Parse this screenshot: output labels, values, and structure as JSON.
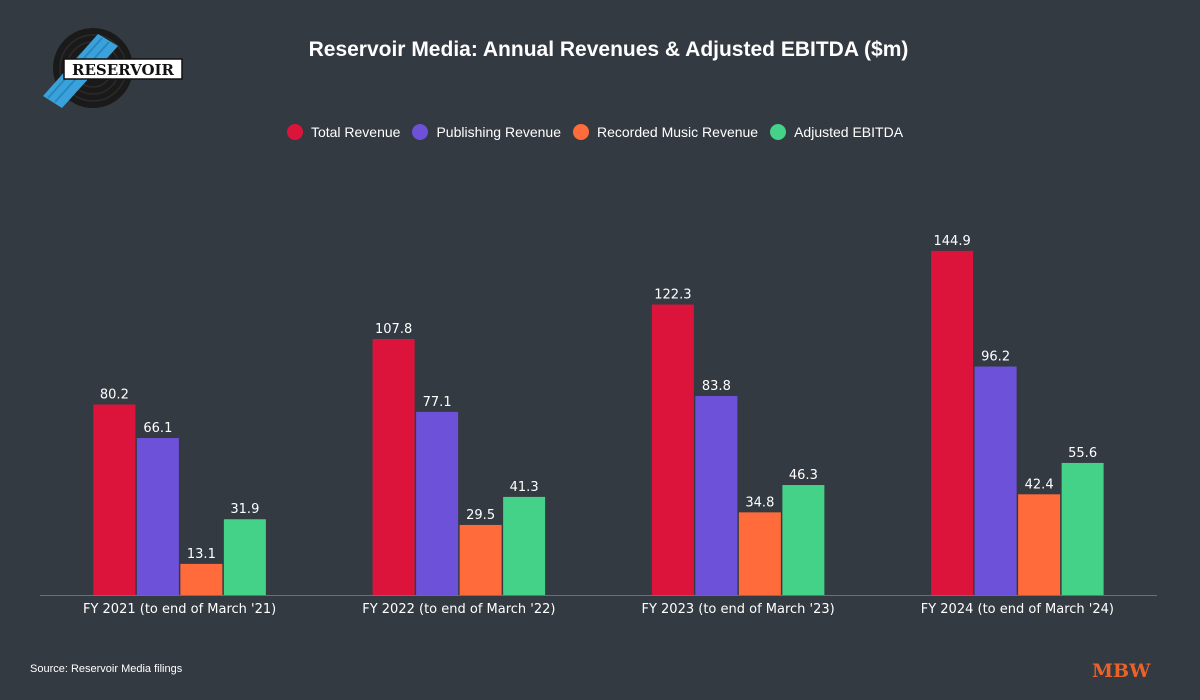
{
  "chart_data": {
    "type": "bar",
    "title": "Reservoir Media: Annual Revenues & Adjusted EBITDA ($m)",
    "categories": [
      "FY 2021 (to end of March '21)",
      "FY 2022 (to end of March '22)",
      "FY 2023 (to end of March '23)",
      "FY 2024 (to end of March '24)"
    ],
    "series": [
      {
        "name": "Total Revenue",
        "color": "#dc143c",
        "values": [
          80.2,
          107.8,
          122.3,
          144.9
        ]
      },
      {
        "name": "Publishing Revenue",
        "color": "#6e51d9",
        "values": [
          66.1,
          77.1,
          83.8,
          96.2
        ]
      },
      {
        "name": "Recorded Music Revenue",
        "color": "#ff6b3a",
        "values": [
          13.1,
          29.5,
          34.8,
          42.4
        ]
      },
      {
        "name": "Adjusted EBITDA",
        "color": "#44d188",
        "values": [
          31.9,
          41.3,
          46.3,
          55.6
        ]
      }
    ],
    "ylim": [
      0,
      160
    ],
    "grid": false,
    "legend_position": "top-center",
    "xlabel": "",
    "ylabel": ""
  },
  "source": "Source: Reservoir Media filings",
  "logo_text": "RESERVOIR",
  "publisher_logo": "MBW"
}
